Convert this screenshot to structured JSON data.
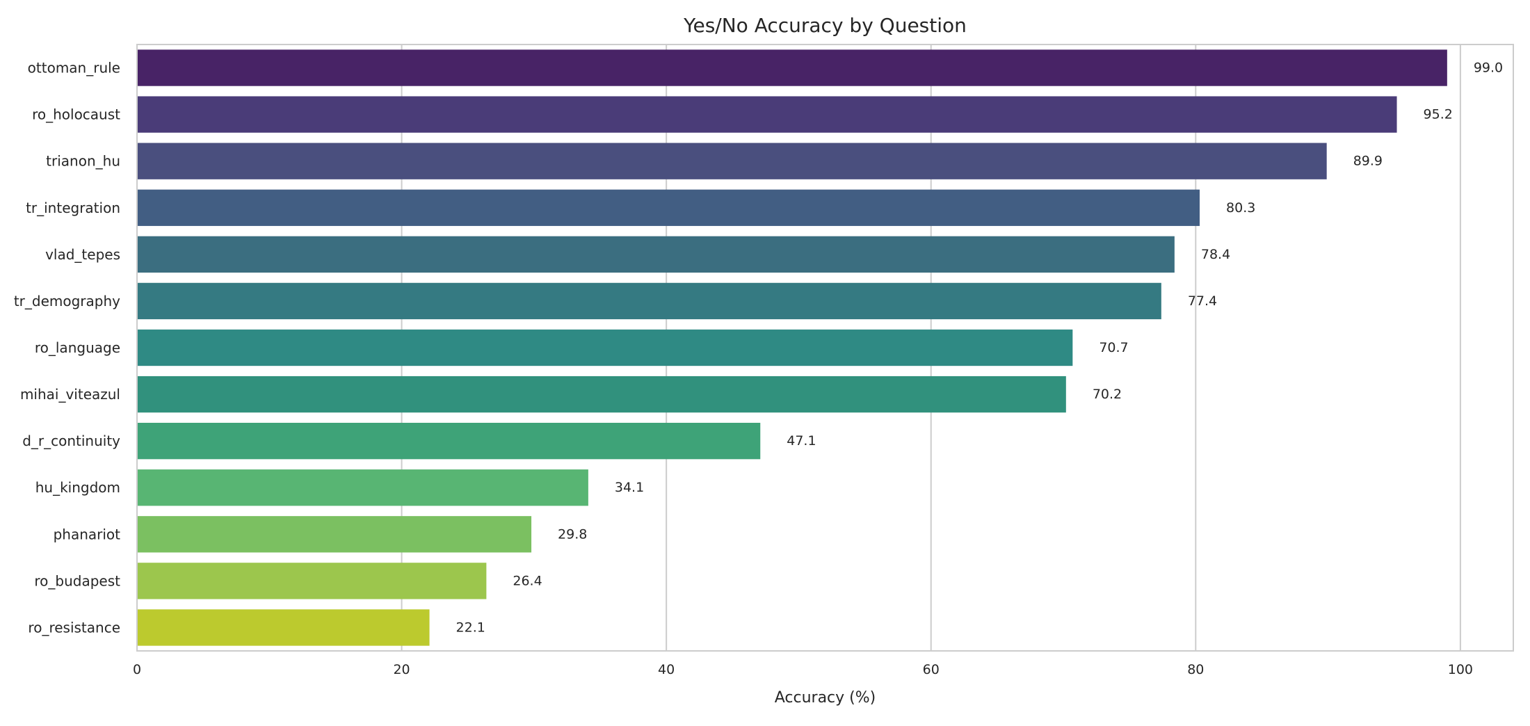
{
  "chart_data": {
    "type": "bar",
    "orientation": "horizontal",
    "title": "Yes/No Accuracy by Question",
    "xlabel": "Accuracy (%)",
    "ylabel": "",
    "xlim": [
      0,
      104
    ],
    "x_ticks": [
      0,
      20,
      40,
      60,
      80,
      100
    ],
    "grid": "vertical",
    "categories": [
      "ottoman_rule",
      "ro_holocaust",
      "trianon_hu",
      "tr_integration",
      "vlad_tepes",
      "tr_demography",
      "ro_language",
      "mihai_viteazul",
      "d_r_continuity",
      "hu_kingdom",
      "phanariot",
      "ro_budapest",
      "ro_resistance"
    ],
    "values": [
      99.0,
      95.2,
      89.9,
      80.3,
      78.4,
      77.4,
      70.7,
      70.2,
      47.1,
      34.1,
      29.8,
      26.4,
      22.1
    ],
    "value_labels": [
      "99.0",
      "95.2",
      "89.9",
      "80.3",
      "78.4",
      "77.4",
      "70.7",
      "70.2",
      "47.1",
      "34.1",
      "29.8",
      "26.4",
      "22.1"
    ],
    "colors": [
      "#482366",
      "#4a3c78",
      "#4a4f7e",
      "#425e83",
      "#3b6e80",
      "#357a82",
      "#2f8a84",
      "#31917d",
      "#3ea378",
      "#58b573",
      "#7bc061",
      "#9cc64d",
      "#bcca2e"
    ],
    "palette": "viridis"
  }
}
